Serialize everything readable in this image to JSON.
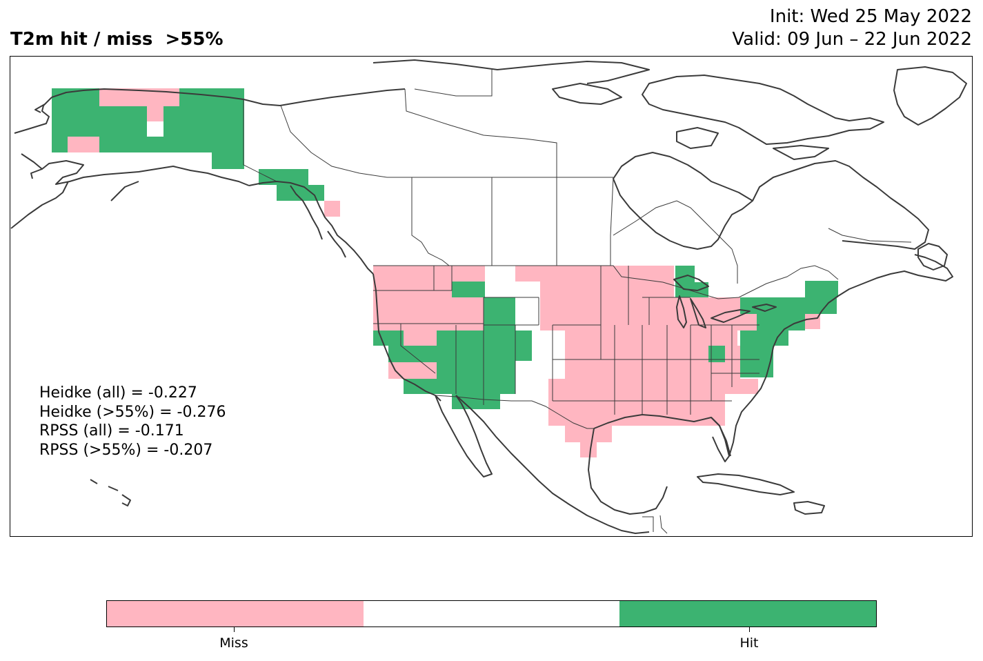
{
  "header": {
    "title": "T2m hit / miss  >55%",
    "init": "Init: Wed 25 May 2022",
    "valid": "Valid: 09 Jun – 22 Jun 2022"
  },
  "stats": {
    "heidke_all": "Heidke (all) = -0.227",
    "heidke_55": "Heidke (>55%) = -0.276",
    "rpss_all": "RPSS (all) = -0.171",
    "rpss_55": "RPSS (>55%) = -0.207"
  },
  "legend": {
    "categories": [
      {
        "label": "Miss",
        "color": "#ffb6c1"
      },
      {
        "label": "",
        "color": "#ffffff"
      },
      {
        "label": "Hit",
        "color": "#3cb371"
      }
    ]
  },
  "colors": {
    "miss": "#ffb6c1",
    "neutral": "#ffffff",
    "hit": "#3cb371",
    "coastline": "#3a3a3a"
  }
}
